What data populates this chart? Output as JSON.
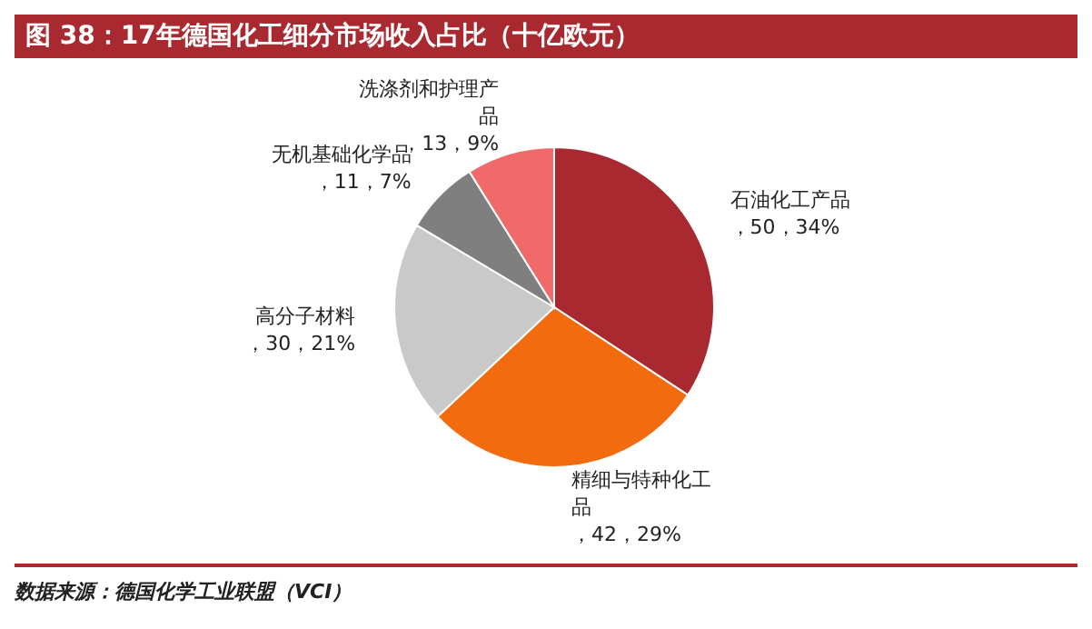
{
  "chart_data": {
    "type": "pie",
    "title": "图 38：17年德国化工细分市场收入占比（十亿欧元）",
    "categories": [
      "石油化工产品",
      "精细与特种化工品",
      "高分子材料",
      "无机基础化学品",
      "洗涤剂和护理产品"
    ],
    "values": [
      50,
      42,
      30,
      11,
      13
    ],
    "value_labels": [
      "，50，34%",
      "，42，29%",
      "，30，21%",
      "，11，7%",
      "，13，9%"
    ],
    "colors": [
      "#a8292f",
      "#f26b0f",
      "#c9c9c9",
      "#7f7f7f",
      "#f06a69"
    ],
    "legend": false,
    "annotations": [
      "数据来源：德国化学工业联盟（VCI）"
    ]
  }
}
